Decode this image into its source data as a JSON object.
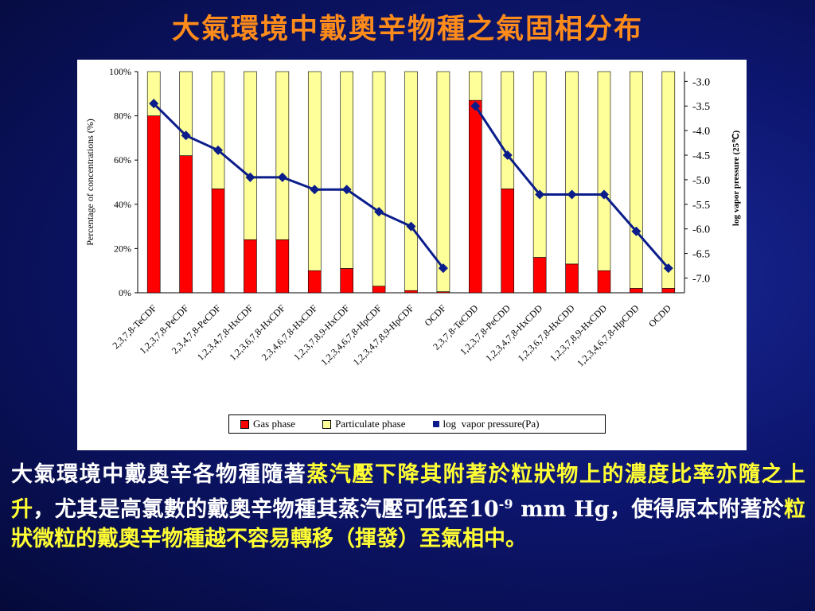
{
  "slide": {
    "title": "大氣環境中戴奧辛物種之氣固相分布"
  },
  "caption": {
    "part1": "大氣環境中戴奧辛各物種隨著",
    "part2": "蒸汽壓下降其附著於粒狀物上的濃度比率亦隨之上升",
    "part3": "，尤其是高氯數的戴奧辛物種其蒸汽壓可低至10",
    "sup": "-9",
    "part4": " mm Hg，使得原本附著於",
    "part5": "粒狀微粒的戴奧辛物種越不容易轉移（揮發）至氣相中。"
  },
  "colors": {
    "gas": "#ff0000",
    "particulate": "#ffff99",
    "line": "#0b1d8a",
    "title": "#ff8c1a",
    "highlight": "#ffff33"
  },
  "chart_data": {
    "type": "bar",
    "stacked": true,
    "categories": [
      "2,3,7,8-TeCDF",
      "1,2,3,7,8-PeCDF",
      "2,3,4,7,8-PeCDF",
      "1,2,3,4,7,8-HxCDF",
      "1,2,3,6,7,8-HxCDF",
      "2,3,4,6,7,8-HxCDF",
      "1,2,3,7,8,9-HxCDF",
      "1,2,3,4,6,7,8-HpCDF",
      "1,2,3,4,7,8,9-HpCDF",
      "OCDF",
      "2,3,7,8-TeCDD",
      "1,2,3,7,8-PeCDD",
      "1,2,3,4,7,8-HxCDD",
      "1,2,3,6,7,8-HxCDD",
      "1,2,3,7,8,9-HxCDD",
      "1,2,3,4,6,7,8-HpCDD",
      "OCDD"
    ],
    "series": [
      {
        "name": "Gas phase",
        "axis": "left",
        "values": [
          80,
          62,
          47,
          24,
          24,
          10,
          11,
          3,
          1,
          0.5,
          87,
          47,
          16,
          13,
          10,
          2,
          2
        ]
      },
      {
        "name": "Particulate phase",
        "axis": "left",
        "values": [
          20,
          38,
          53,
          76,
          76,
          90,
          89,
          97,
          99,
          99.5,
          13,
          53,
          84,
          87,
          90,
          98,
          98
        ]
      },
      {
        "name": "log  vapor pressure(Pa)",
        "axis": "right",
        "type": "line",
        "values": [
          -3.45,
          -4.1,
          -4.4,
          -4.95,
          -4.95,
          -5.2,
          -5.2,
          -5.65,
          -5.95,
          -6.8,
          -3.5,
          -4.5,
          -5.3,
          -5.3,
          -5.3,
          -6.05,
          -6.8
        ]
      }
    ],
    "ylabel": "Percentage of concentrations (%)",
    "ylabel_right": "log vapor pressure (25℃)",
    "ylim": [
      0,
      100
    ],
    "ylim_right": [
      -7.3,
      -2.8
    ],
    "yticks": [
      "0%",
      "20%",
      "40%",
      "60%",
      "80%",
      "100%"
    ],
    "yticks_right": [
      "-3.0",
      "-3.5",
      "-4.0",
      "-4.5",
      "-5.0",
      "-5.5",
      "-6.0",
      "-6.5",
      "-7.0"
    ],
    "legend_position": "bottom"
  }
}
